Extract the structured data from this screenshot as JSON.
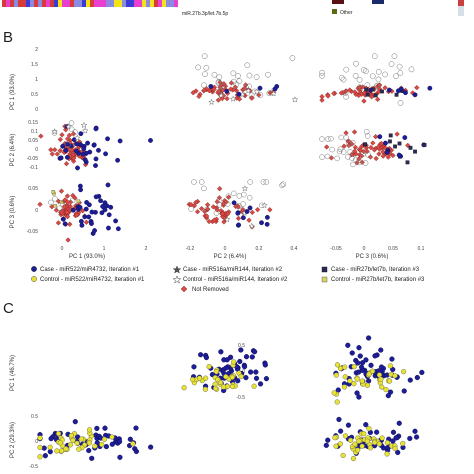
{
  "panel_a_fragment": {
    "label": "miR.27b.3p/let.7b.5p",
    "legend_items": [
      "Other"
    ],
    "colors": {
      "heatmap_blue": "#3b3bd6",
      "heatmap_magenta": "#e83fd0",
      "heatmap_yellow": "#f2e21a",
      "heatmap_red": "#d63a3a",
      "legend_dark": "#5a1010"
    }
  },
  "colors": {
    "blue": "#1d1d9a",
    "yellow": "#e8e230",
    "red_diamond": "#d94a45",
    "grey_star": "#6b6b6b",
    "open_circle": "#777777"
  },
  "chart_data": [
    {
      "type": "scatter",
      "panel": "B",
      "title": "",
      "layout": "scatter matrix 3x3 (upper-triangle subset)",
      "axis_labels": {
        "rows": [
          "PC 1 (93.0%)",
          "PC 2 (6.4%)",
          "PC 3 (0.6%)"
        ],
        "cols": [
          "PC 1 (93.0%)",
          "PC 2 (6.4%)",
          "PC 3 (0.6%)"
        ]
      },
      "ticks": {
        "pc1_y": [
          "2",
          "1.5",
          "1",
          "0.5",
          "0"
        ],
        "pc2_y": [
          "0.15",
          "0.1",
          "0.05",
          "0",
          "-0.05",
          "-0.1"
        ],
        "pc3_y": [
          "0.05",
          "0",
          "-0.05"
        ],
        "pc1_x": [
          "0",
          "1",
          "2"
        ],
        "pc2_x": [
          "-0.2",
          "0",
          "0.2",
          "0.4"
        ],
        "pc3_x": [
          "-0.05",
          "0",
          "0.05",
          "0.1"
        ]
      },
      "ranges": {
        "pc1": [
          -0.5,
          2.2
        ],
        "pc2": [
          -0.3,
          0.45
        ],
        "pc3": [
          -0.09,
          0.12
        ]
      },
      "legend": [
        {
          "label": "Case - miR522/miR4732, Iteration #1",
          "marker": "circle-filled-blue"
        },
        {
          "label": "Control - miR522/miR4732, Iteration #1",
          "marker": "circle-filled-yellow"
        },
        {
          "label": "Case - miR516a/miR144, Iteration #2",
          "marker": "star-filled-grey"
        },
        {
          "label": "Control - miR516a/miR144, Iteration #2",
          "marker": "star-open-grey"
        },
        {
          "label": "Case - miR27b/let7b, Iteration #3",
          "marker": "square-filled-dark"
        },
        {
          "label": "Control - miR27b/let7b, Iteration #3",
          "marker": "square-filled-yellow"
        },
        {
          "label": "Not Removed",
          "marker": "diamond-red"
        }
      ],
      "series_summary": {
        "not_removed_center": {
          "pc1": 0.0,
          "pc2": 0.0,
          "pc3": 0.0
        },
        "case_blue_center": {
          "pc1": 0.3,
          "pc2": 0.02,
          "pc3": 0.01
        },
        "control_yellow_center": {
          "pc1": 0.6,
          "pc2": -0.06,
          "pc3": -0.05
        }
      }
    },
    {
      "type": "scatter",
      "panel": "C",
      "title": "",
      "axis_labels": {
        "rows": [
          "PC 1 (46.7%)",
          "PC 2 (29.3%)"
        ]
      },
      "ticks": {
        "pc1_y": [
          "0.5",
          "0",
          "-0.5"
        ],
        "pc2_y": [
          "0.5",
          "0",
          "-0.5"
        ]
      },
      "ranges": {
        "pc1": [
          -0.7,
          0.7
        ],
        "pc2": [
          -0.6,
          0.8
        ]
      },
      "series": [
        {
          "name": "Case",
          "color": "blue"
        },
        {
          "name": "Control",
          "color": "yellow"
        }
      ]
    }
  ]
}
